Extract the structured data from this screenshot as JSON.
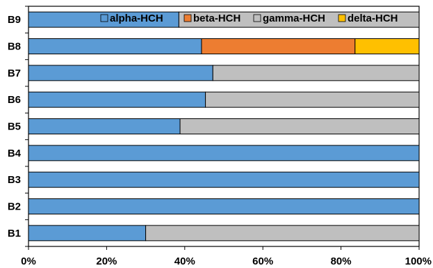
{
  "chart_data": {
    "type": "bar",
    "orientation": "horizontal",
    "stacked": true,
    "percent": true,
    "categories": [
      "B9",
      "B8",
      "B7",
      "B6",
      "B5",
      "B4",
      "B3",
      "B2",
      "B1"
    ],
    "series": [
      {
        "name": "alpha-HCH",
        "color": "#5B9BD5",
        "values": [
          38.5,
          44.3,
          47.2,
          45.3,
          38.8,
          100,
          100,
          100,
          30.0
        ]
      },
      {
        "name": "beta-HCH",
        "color": "#ED7D31",
        "values": [
          0,
          39.3,
          0,
          0,
          0,
          0,
          0,
          0,
          0
        ]
      },
      {
        "name": "gamma-HCH",
        "color": "#BFBFBF",
        "values": [
          61.5,
          0,
          52.8,
          54.7,
          61.2,
          0,
          0,
          0,
          70.0
        ]
      },
      {
        "name": "delta-HCH",
        "color": "#FFC000",
        "values": [
          0,
          16.4,
          0,
          0,
          0,
          0,
          0,
          0,
          0
        ]
      }
    ],
    "xlim": [
      0,
      100
    ],
    "xticks": [
      "0%",
      "20%",
      "40%",
      "60%",
      "80%",
      "100%"
    ],
    "title": "",
    "xlabel": "",
    "ylabel": "",
    "legend_position": "top-right",
    "grid": false
  }
}
